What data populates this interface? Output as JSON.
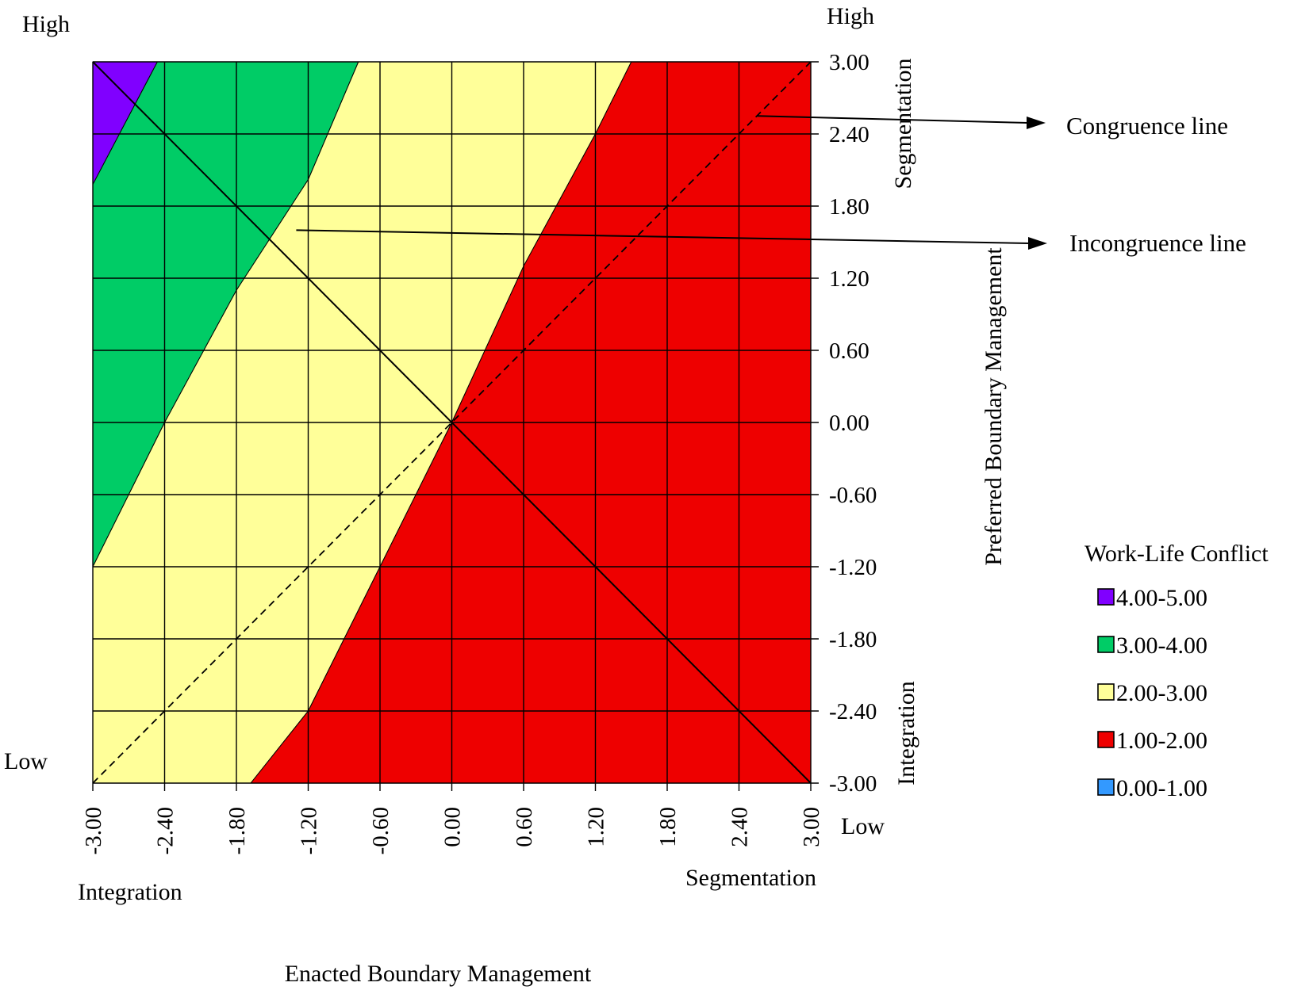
{
  "chart_data": {
    "type": "heatmap",
    "description_source": "response surface contour plot",
    "x": {
      "title": "Enacted Boundary Management",
      "range": [
        -3.0,
        3.0
      ],
      "ticks": [
        "-3.00",
        "-2.40",
        "-1.80",
        "-1.20",
        "-0.60",
        "0.00",
        "0.60",
        "1.20",
        "1.80",
        "2.40",
        "3.00"
      ],
      "low_end_label": "Integration",
      "high_end_label": "Segmentation"
    },
    "y": {
      "title": "Preferred Boundary Management",
      "range": [
        -3.0,
        3.0
      ],
      "ticks": [
        "3.00",
        "2.40",
        "1.80",
        "1.20",
        "0.60",
        "0.00",
        "-0.60",
        "-1.20",
        "-1.80",
        "-2.40",
        "-3.00"
      ],
      "low_end_label": "Integration",
      "high_end_label": "Segmentation"
    },
    "z": {
      "title": "Work-Life Conflict",
      "left_high_label": "High",
      "left_low_label": "Low",
      "right_high_label": "High",
      "right_low_label": "Low"
    },
    "regions": [
      {
        "range": "4.00-5.00",
        "color": "#8000ff",
        "polygon": [
          [
            -3.0,
            3.0
          ],
          [
            -2.46,
            3.0
          ],
          [
            -3.0,
            1.98
          ]
        ]
      },
      {
        "range": "3.00-4.00",
        "color": "#00cc66",
        "polygon": [
          [
            -2.46,
            3.0
          ],
          [
            -0.78,
            3.0
          ],
          [
            -1.2,
            2.02
          ],
          [
            -1.8,
            1.1
          ],
          [
            -2.4,
            0.0
          ],
          [
            -3.0,
            -1.2
          ],
          [
            -3.0,
            1.98
          ]
        ]
      },
      {
        "range": "2.00-3.00",
        "color": "#ffff99",
        "polygon": [
          [
            -0.78,
            3.0
          ],
          [
            1.5,
            3.0
          ],
          [
            1.2,
            2.4
          ],
          [
            0.6,
            1.3
          ],
          [
            0.0,
            0.0
          ],
          [
            -0.6,
            -1.2
          ],
          [
            -1.2,
            -2.4
          ],
          [
            -1.68,
            -3.0
          ],
          [
            -3.0,
            -3.0
          ],
          [
            -3.0,
            -1.2
          ],
          [
            -2.4,
            0.0
          ],
          [
            -1.8,
            1.1
          ],
          [
            -1.2,
            2.02
          ]
        ]
      },
      {
        "range": "1.00-2.00",
        "color": "#ee0000",
        "polygon": [
          [
            1.5,
            3.0
          ],
          [
            3.0,
            3.0
          ],
          [
            3.0,
            -3.0
          ],
          [
            -1.68,
            -3.0
          ],
          [
            -1.2,
            -2.4
          ],
          [
            -0.6,
            -1.2
          ],
          [
            0.0,
            0.0
          ],
          [
            0.6,
            1.3
          ],
          [
            1.2,
            2.4
          ]
        ]
      }
    ],
    "lines": [
      {
        "name": "Congruence line",
        "style": "dashed",
        "from": [
          -3.0,
          -3.0
        ],
        "to": [
          3.0,
          3.0
        ]
      },
      {
        "name": "Incongruence line",
        "style": "solid",
        "from": [
          -3.0,
          3.0
        ],
        "to": [
          3.0,
          -3.0
        ]
      }
    ],
    "annotations": [
      {
        "text": "Congruence line",
        "points_at": [
          2.55,
          2.55
        ]
      },
      {
        "text": "Incongruence line",
        "points_at": [
          -1.3,
          1.6
        ]
      }
    ],
    "legend": {
      "title": "Work-Life Conflict",
      "placement": "right",
      "items": [
        {
          "label": "4.00-5.00",
          "color": "#8000ff"
        },
        {
          "label": "3.00-4.00",
          "color": "#00cc66"
        },
        {
          "label": "2.00-3.00",
          "color": "#ffff99"
        },
        {
          "label": "1.00-2.00",
          "color": "#ee0000"
        },
        {
          "label": "0.00-1.00",
          "color": "#3399ff"
        }
      ]
    },
    "grid": true
  }
}
